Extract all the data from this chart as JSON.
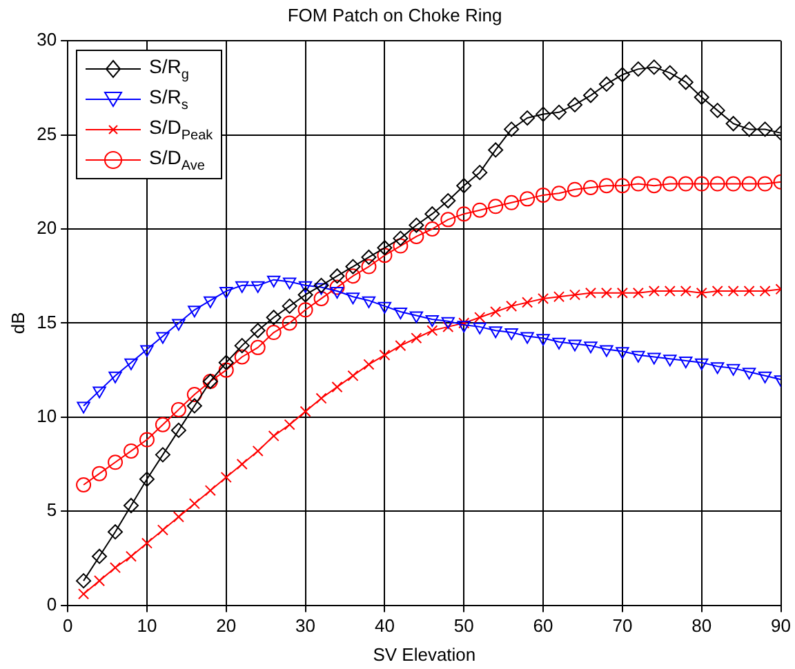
{
  "chart_data": {
    "type": "line",
    "title": "FOM Patch on Choke Ring",
    "xlabel": "SV Elevation",
    "ylabel": "dB",
    "x": [
      2,
      4,
      6,
      8,
      10,
      12,
      14,
      16,
      18,
      20,
      22,
      24,
      26,
      28,
      30,
      32,
      34,
      36,
      38,
      40,
      42,
      44,
      46,
      48,
      50,
      52,
      54,
      56,
      58,
      60,
      62,
      64,
      66,
      68,
      70,
      72,
      74,
      76,
      78,
      80,
      82,
      84,
      86,
      88,
      90
    ],
    "xlim": [
      0,
      90
    ],
    "xticks": [
      0,
      10,
      20,
      30,
      40,
      50,
      60,
      70,
      80,
      90
    ],
    "ylim": [
      0,
      30
    ],
    "yticks": [
      0,
      5,
      10,
      15,
      20,
      25,
      30
    ],
    "grid": true,
    "legend": "top left",
    "line_style": "solid",
    "series": [
      {
        "name": "S/R$_{g}$",
        "color": "#000000",
        "marker": "diamond",
        "values": [
          1.3,
          2.6,
          3.9,
          5.3,
          6.7,
          8.0,
          9.3,
          10.6,
          11.9,
          12.9,
          13.8,
          14.6,
          15.3,
          15.9,
          16.5,
          17.0,
          17.5,
          18.0,
          18.5,
          19.0,
          19.5,
          20.2,
          20.8,
          21.5,
          22.3,
          23.0,
          24.2,
          25.3,
          25.9,
          26.1,
          26.2,
          26.6,
          27.1,
          27.7,
          28.2,
          28.5,
          28.6,
          28.3,
          27.8,
          27.0,
          26.3,
          25.6,
          25.3,
          25.3,
          25.1
        ]
      },
      {
        "name": "S/R$_{s}$",
        "color": "#0000ff",
        "marker": "triangle",
        "values": [
          10.6,
          11.4,
          12.2,
          12.9,
          13.6,
          14.3,
          15.0,
          15.7,
          16.2,
          16.7,
          17.0,
          17.0,
          17.3,
          17.2,
          17.0,
          16.9,
          16.7,
          16.4,
          16.2,
          15.9,
          15.6,
          15.4,
          15.2,
          15.1,
          14.9,
          14.8,
          14.6,
          14.5,
          14.3,
          14.2,
          14.0,
          13.9,
          13.8,
          13.6,
          13.5,
          13.3,
          13.2,
          13.1,
          13.0,
          12.9,
          12.7,
          12.6,
          12.4,
          12.2,
          12.0
        ]
      },
      {
        "name": "S/D$_{Peak}$",
        "color": "#ff0000",
        "marker": "cross",
        "values": [
          0.6,
          1.3,
          2.0,
          2.6,
          3.3,
          4.0,
          4.7,
          5.4,
          6.1,
          6.8,
          7.5,
          8.2,
          9.0,
          9.6,
          10.3,
          11.0,
          11.6,
          12.2,
          12.8,
          13.3,
          13.8,
          14.2,
          14.6,
          14.8,
          15.0,
          15.3,
          15.6,
          15.9,
          16.1,
          16.3,
          16.4,
          16.5,
          16.6,
          16.6,
          16.6,
          16.6,
          16.7,
          16.7,
          16.7,
          16.6,
          16.7,
          16.7,
          16.7,
          16.7,
          16.8
        ]
      },
      {
        "name": "S/D$_{Ave}$",
        "color": "#ff0000",
        "marker": "circle",
        "values": [
          6.4,
          7.0,
          7.6,
          8.2,
          8.8,
          9.6,
          10.4,
          11.2,
          11.9,
          12.5,
          13.2,
          13.7,
          14.5,
          15.0,
          15.7,
          16.3,
          16.9,
          17.5,
          18.0,
          18.6,
          19.1,
          19.6,
          20.0,
          20.5,
          20.8,
          21.0,
          21.2,
          21.4,
          21.6,
          21.8,
          21.9,
          22.1,
          22.2,
          22.3,
          22.3,
          22.4,
          22.3,
          22.4,
          22.4,
          22.4,
          22.4,
          22.4,
          22.4,
          22.4,
          22.5
        ]
      }
    ]
  }
}
